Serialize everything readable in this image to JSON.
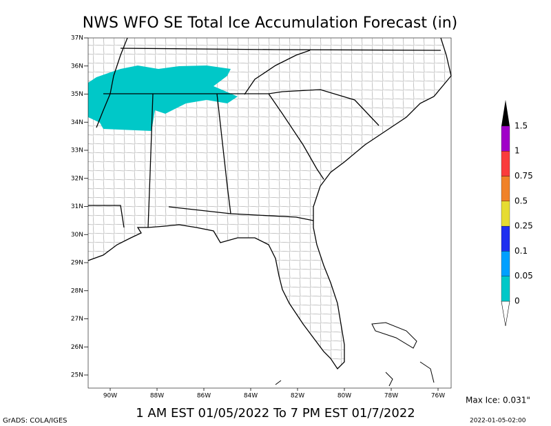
{
  "header": {
    "title": "NWS WFO SE Total Ice Accumulation Forecast (in)"
  },
  "map": {
    "lat_labels": [
      "37N",
      "36N",
      "35N",
      "34N",
      "33N",
      "32N",
      "31N",
      "30N",
      "29N",
      "28N",
      "27N",
      "26N",
      "25N"
    ],
    "lon_labels": [
      "90W",
      "88W",
      "86W",
      "84W",
      "82W",
      "80W",
      "78W",
      "76W"
    ]
  },
  "legend": {
    "items": [
      {
        "label": "0",
        "color": "#00c8c8"
      },
      {
        "label": "0.05",
        "color": "#00a0ff"
      },
      {
        "label": "0.1",
        "color": "#2030f0"
      },
      {
        "label": "0.25",
        "color": "#e6dc32"
      },
      {
        "label": "0.5",
        "color": "#f08228"
      },
      {
        "label": "0.75",
        "color": "#fa3c3c"
      },
      {
        "label": "1",
        "color": "#a000c8"
      },
      {
        "label": "1.5",
        "color": "#000000"
      }
    ]
  },
  "footer": {
    "max_ice": "Max Ice: 0.031\"",
    "valid_range": "1 AM EST 01/05/2022 To 7 PM EST 01/7/2022",
    "credit": "GrADS: COLA/IGES",
    "timestamp": "2022-01-05-02:00"
  }
}
